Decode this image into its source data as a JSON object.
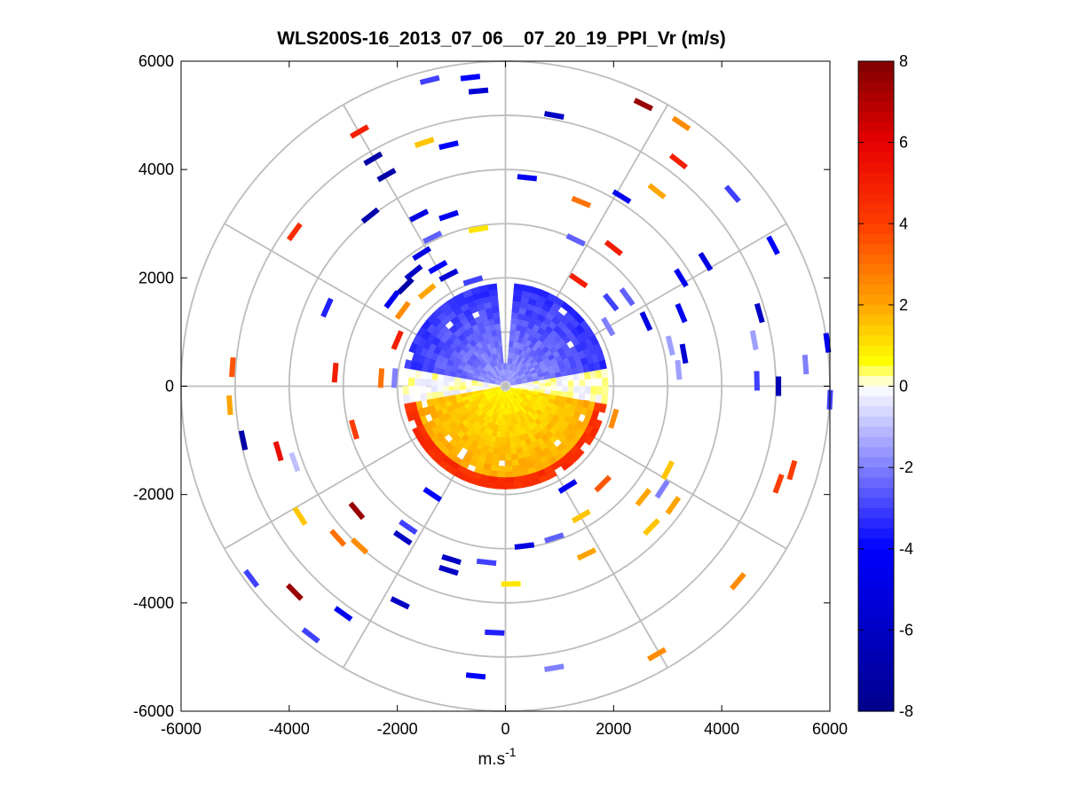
{
  "chart_data": {
    "type": "ppi-polar-scatter",
    "title": "WLS200S-16_2013_07_06__07_20_19_PPI_Vr (m/s)",
    "xlabel": "m.s",
    "xlabel_superscript": "-1",
    "ylabel": "",
    "xlim": [
      -6000,
      6000
    ],
    "ylim": [
      -6000,
      6000
    ],
    "xticks": [
      -6000,
      -4000,
      -2000,
      0,
      2000,
      4000,
      6000
    ],
    "yticks": [
      -6000,
      -4000,
      -2000,
      0,
      2000,
      4000,
      6000
    ],
    "xtick_labels": [
      "-6000",
      "-4000",
      "-2000",
      "0",
      "2000",
      "4000",
      "6000"
    ],
    "ytick_labels": [
      "6000",
      "4000",
      "2000",
      "0",
      "-2000",
      "-4000",
      "-6000"
    ],
    "range_rings": [
      1000,
      2000,
      3000,
      4000,
      5000,
      6000
    ],
    "spoke_angles_deg": [
      0,
      30,
      60,
      90,
      120,
      150,
      180,
      210,
      240,
      270,
      300,
      330
    ],
    "colorbar": {
      "min": -8,
      "max": 8,
      "ticks": [
        8,
        6,
        4,
        2,
        0,
        -2,
        -4,
        -6,
        -8
      ],
      "tick_labels": [
        "8",
        "6",
        "4",
        "2",
        "0",
        "-2",
        "-4",
        "-6",
        "-8"
      ],
      "colors": [
        "#00008b",
        "#0000ff",
        "#ffffff",
        "#ffff00",
        "#ff8c00",
        "#ff0000",
        "#7f0000"
      ]
    },
    "dense_core": {
      "max_range": 1900,
      "north_half_velocity": -3,
      "south_half_velocity": 1.5,
      "gap_sector_deg": [
        -3,
        2
      ]
    },
    "points": [
      {
        "x": -650,
        "y": 5700,
        "v": -4
      },
      {
        "x": -1400,
        "y": 5650,
        "v": -3
      },
      {
        "x": -500,
        "y": 5450,
        "v": -5.5
      },
      {
        "x": 900,
        "y": 5000,
        "v": -6
      },
      {
        "x": 2550,
        "y": 5200,
        "v": 7.5
      },
      {
        "x": 3250,
        "y": 4850,
        "v": 2.5
      },
      {
        "x": -2700,
        "y": 4700,
        "v": 5
      },
      {
        "x": -1500,
        "y": 4500,
        "v": 1.5
      },
      {
        "x": -1050,
        "y": 4450,
        "v": -4
      },
      {
        "x": -2450,
        "y": 4200,
        "v": -7
      },
      {
        "x": 3200,
        "y": 4150,
        "v": 5
      },
      {
        "x": -2200,
        "y": 3900,
        "v": -7
      },
      {
        "x": 400,
        "y": 3850,
        "v": -4.5
      },
      {
        "x": 2800,
        "y": 3600,
        "v": 2
      },
      {
        "x": 4200,
        "y": 3550,
        "v": -3
      },
      {
        "x": 2150,
        "y": 3500,
        "v": -4.5
      },
      {
        "x": 1400,
        "y": 3400,
        "v": 3
      },
      {
        "x": -1600,
        "y": 3150,
        "v": -5
      },
      {
        "x": -2500,
        "y": 3150,
        "v": -7
      },
      {
        "x": -1050,
        "y": 3150,
        "v": -4.5
      },
      {
        "x": -3900,
        "y": 2850,
        "v": 4.5
      },
      {
        "x": -500,
        "y": 2900,
        "v": 1
      },
      {
        "x": -1350,
        "y": 2750,
        "v": -2.5
      },
      {
        "x": 1300,
        "y": 2700,
        "v": -2.5
      },
      {
        "x": 2000,
        "y": 2550,
        "v": 5
      },
      {
        "x": 4950,
        "y": 2600,
        "v": -4
      },
      {
        "x": -1550,
        "y": 2450,
        "v": -5
      },
      {
        "x": 3700,
        "y": 2300,
        "v": -5
      },
      {
        "x": -1250,
        "y": 2200,
        "v": -4
      },
      {
        "x": -1700,
        "y": 2100,
        "v": -6
      },
      {
        "x": -1050,
        "y": 2050,
        "v": -5.5
      },
      {
        "x": 3250,
        "y": 2000,
        "v": -4.5
      },
      {
        "x": 1350,
        "y": 1950,
        "v": 5
      },
      {
        "x": -600,
        "y": 1950,
        "v": -3
      },
      {
        "x": -1850,
        "y": 1850,
        "v": -7
      },
      {
        "x": -1450,
        "y": 1750,
        "v": 2
      },
      {
        "x": 2250,
        "y": 1650,
        "v": -2.5
      },
      {
        "x": 1950,
        "y": 1550,
        "v": -3
      },
      {
        "x": -2100,
        "y": 1600,
        "v": -4.5
      },
      {
        "x": -3300,
        "y": 1450,
        "v": -3.5
      },
      {
        "x": -1900,
        "y": 1400,
        "v": 2.5
      },
      {
        "x": 3250,
        "y": 1350,
        "v": -4.5
      },
      {
        "x": 4700,
        "y": 1350,
        "v": -6
      },
      {
        "x": 2600,
        "y": 1200,
        "v": -5
      },
      {
        "x": 1900,
        "y": 1100,
        "v": -2
      },
      {
        "x": 4600,
        "y": 850,
        "v": -1.5
      },
      {
        "x": 5950,
        "y": 800,
        "v": -4.5
      },
      {
        "x": 3050,
        "y": 750,
        "v": -1.5
      },
      {
        "x": 3300,
        "y": 600,
        "v": -5.5
      },
      {
        "x": -2000,
        "y": 850,
        "v": 5
      },
      {
        "x": 5550,
        "y": 400,
        "v": -2
      },
      {
        "x": -5050,
        "y": 350,
        "v": 3.5
      },
      {
        "x": 3200,
        "y": 300,
        "v": -1.5
      },
      {
        "x": -3150,
        "y": 250,
        "v": 5
      },
      {
        "x": -2300,
        "y": 150,
        "v": 3
      },
      {
        "x": -2050,
        "y": 150,
        "v": -2
      },
      {
        "x": 5050,
        "y": 0,
        "v": -6.5
      },
      {
        "x": 4650,
        "y": 100,
        "v": -3
      },
      {
        "x": 6000,
        "y": -250,
        "v": -3
      },
      {
        "x": -5100,
        "y": -350,
        "v": 2
      },
      {
        "x": 2000,
        "y": -600,
        "v": 2.5
      },
      {
        "x": -2800,
        "y": -800,
        "v": 4
      },
      {
        "x": -4850,
        "y": -1000,
        "v": -7
      },
      {
        "x": -4200,
        "y": -1200,
        "v": 5.5
      },
      {
        "x": -3900,
        "y": -1400,
        "v": -1
      },
      {
        "x": 5300,
        "y": -1550,
        "v": 4
      },
      {
        "x": 3000,
        "y": -1550,
        "v": 1.5
      },
      {
        "x": 1800,
        "y": -1800,
        "v": 3.5
      },
      {
        "x": 5050,
        "y": -1800,
        "v": 4
      },
      {
        "x": 1150,
        "y": -1850,
        "v": -4.5
      },
      {
        "x": 2900,
        "y": -1900,
        "v": -2
      },
      {
        "x": 2550,
        "y": -2050,
        "v": 2
      },
      {
        "x": -1350,
        "y": -2000,
        "v": -4
      },
      {
        "x": -2750,
        "y": -2300,
        "v": 7.5
      },
      {
        "x": 3100,
        "y": -2200,
        "v": 2
      },
      {
        "x": -3800,
        "y": -2400,
        "v": 1.5
      },
      {
        "x": 1400,
        "y": -2400,
        "v": 1.5
      },
      {
        "x": 2700,
        "y": -2600,
        "v": 1.5
      },
      {
        "x": -1800,
        "y": -2600,
        "v": -3
      },
      {
        "x": -3100,
        "y": -2800,
        "v": 3
      },
      {
        "x": -1900,
        "y": -2800,
        "v": -6
      },
      {
        "x": -2700,
        "y": -2950,
        "v": 2.5
      },
      {
        "x": 900,
        "y": -2800,
        "v": -2.5
      },
      {
        "x": 350,
        "y": -2950,
        "v": -5
      },
      {
        "x": 1500,
        "y": -3100,
        "v": 2
      },
      {
        "x": -1000,
        "y": -3200,
        "v": -6
      },
      {
        "x": -350,
        "y": -3250,
        "v": -3
      },
      {
        "x": -1050,
        "y": -3400,
        "v": -6
      },
      {
        "x": -4700,
        "y": -3550,
        "v": -3
      },
      {
        "x": 4300,
        "y": -3600,
        "v": 2.5
      },
      {
        "x": 100,
        "y": -3650,
        "v": 1
      },
      {
        "x": -3900,
        "y": -3800,
        "v": 7.5
      },
      {
        "x": -1950,
        "y": -4000,
        "v": -6
      },
      {
        "x": -3000,
        "y": -4200,
        "v": -4.5
      },
      {
        "x": -3600,
        "y": -4600,
        "v": -3
      },
      {
        "x": -200,
        "y": -4550,
        "v": -3.5
      },
      {
        "x": 2800,
        "y": -4950,
        "v": 2.5
      },
      {
        "x": 900,
        "y": -5200,
        "v": -2
      },
      {
        "x": -550,
        "y": -5350,
        "v": -4
      }
    ]
  }
}
